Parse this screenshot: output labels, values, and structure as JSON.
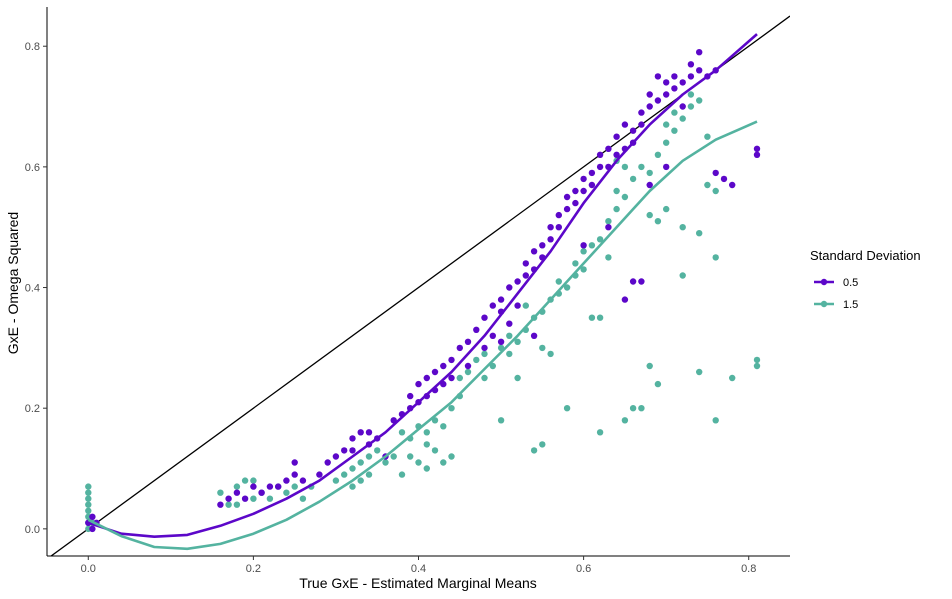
{
  "chart_data": {
    "type": "scatter",
    "xlabel": "True GxE - Estimated Marginal Means",
    "ylabel": "GxE - Omega Squared",
    "xlim": [
      -0.05,
      0.85
    ],
    "ylim": [
      -0.045,
      0.865
    ],
    "x_ticks": [
      "0.0",
      "0.2",
      "0.4",
      "0.6",
      "0.8"
    ],
    "y_ticks": [
      "0.0",
      "0.2",
      "0.4",
      "0.6",
      "0.8"
    ],
    "grid": false,
    "legend": {
      "title": "Standard Deviation",
      "position": "right",
      "entries": [
        "0.5",
        "1.5"
      ]
    },
    "reference_line": {
      "slope": 1,
      "intercept": 0,
      "color": "#000000"
    },
    "series": [
      {
        "name": "0.5",
        "color": "#5c07c9",
        "points": [
          [
            0.0,
            0.01
          ],
          [
            0.005,
            0.0
          ],
          [
            0.005,
            0.02
          ],
          [
            0.01,
            0.01
          ],
          [
            0.16,
            0.04
          ],
          [
            0.17,
            0.05
          ],
          [
            0.18,
            0.06
          ],
          [
            0.19,
            0.05
          ],
          [
            0.2,
            0.07
          ],
          [
            0.21,
            0.06
          ],
          [
            0.22,
            0.07
          ],
          [
            0.23,
            0.07
          ],
          [
            0.24,
            0.08
          ],
          [
            0.25,
            0.09
          ],
          [
            0.25,
            0.11
          ],
          [
            0.26,
            0.08
          ],
          [
            0.28,
            0.09
          ],
          [
            0.29,
            0.11
          ],
          [
            0.3,
            0.12
          ],
          [
            0.31,
            0.13
          ],
          [
            0.32,
            0.15
          ],
          [
            0.32,
            0.13
          ],
          [
            0.33,
            0.16
          ],
          [
            0.34,
            0.16
          ],
          [
            0.34,
            0.14
          ],
          [
            0.35,
            0.15
          ],
          [
            0.36,
            0.12
          ],
          [
            0.37,
            0.18
          ],
          [
            0.38,
            0.19
          ],
          [
            0.39,
            0.2
          ],
          [
            0.39,
            0.22
          ],
          [
            0.4,
            0.21
          ],
          [
            0.4,
            0.24
          ],
          [
            0.41,
            0.25
          ],
          [
            0.41,
            0.22
          ],
          [
            0.42,
            0.26
          ],
          [
            0.42,
            0.23
          ],
          [
            0.43,
            0.27
          ],
          [
            0.43,
            0.24
          ],
          [
            0.44,
            0.28
          ],
          [
            0.44,
            0.25
          ],
          [
            0.45,
            0.3
          ],
          [
            0.46,
            0.31
          ],
          [
            0.47,
            0.33
          ],
          [
            0.48,
            0.35
          ],
          [
            0.48,
            0.3
          ],
          [
            0.49,
            0.37
          ],
          [
            0.49,
            0.32
          ],
          [
            0.5,
            0.36
          ],
          [
            0.5,
            0.38
          ],
          [
            0.51,
            0.34
          ],
          [
            0.51,
            0.4
          ],
          [
            0.52,
            0.41
          ],
          [
            0.52,
            0.37
          ],
          [
            0.53,
            0.42
          ],
          [
            0.53,
            0.44
          ],
          [
            0.54,
            0.43
          ],
          [
            0.54,
            0.46
          ],
          [
            0.55,
            0.47
          ],
          [
            0.55,
            0.45
          ],
          [
            0.56,
            0.5
          ],
          [
            0.56,
            0.48
          ],
          [
            0.57,
            0.5
          ],
          [
            0.57,
            0.52
          ],
          [
            0.58,
            0.53
          ],
          [
            0.58,
            0.55
          ],
          [
            0.59,
            0.56
          ],
          [
            0.59,
            0.54
          ],
          [
            0.6,
            0.56
          ],
          [
            0.6,
            0.58
          ],
          [
            0.61,
            0.57
          ],
          [
            0.61,
            0.59
          ],
          [
            0.62,
            0.6
          ],
          [
            0.62,
            0.62
          ],
          [
            0.63,
            0.63
          ],
          [
            0.63,
            0.6
          ],
          [
            0.64,
            0.62
          ],
          [
            0.64,
            0.65
          ],
          [
            0.65,
            0.63
          ],
          [
            0.65,
            0.67
          ],
          [
            0.66,
            0.66
          ],
          [
            0.66,
            0.64
          ],
          [
            0.67,
            0.69
          ],
          [
            0.67,
            0.67
          ],
          [
            0.68,
            0.7
          ],
          [
            0.68,
            0.72
          ],
          [
            0.69,
            0.71
          ],
          [
            0.69,
            0.75
          ],
          [
            0.7,
            0.72
          ],
          [
            0.7,
            0.74
          ],
          [
            0.71,
            0.73
          ],
          [
            0.71,
            0.75
          ],
          [
            0.72,
            0.74
          ],
          [
            0.72,
            0.7
          ],
          [
            0.73,
            0.77
          ],
          [
            0.73,
            0.75
          ],
          [
            0.74,
            0.79
          ],
          [
            0.74,
            0.76
          ],
          [
            0.75,
            0.75
          ],
          [
            0.76,
            0.76
          ],
          [
            0.76,
            0.59
          ],
          [
            0.77,
            0.58
          ],
          [
            0.78,
            0.57
          ],
          [
            0.81,
            0.63
          ],
          [
            0.81,
            0.62
          ],
          [
            0.46,
            0.27
          ],
          [
            0.5,
            0.31
          ],
          [
            0.54,
            0.32
          ],
          [
            0.6,
            0.47
          ],
          [
            0.63,
            0.5
          ],
          [
            0.65,
            0.38
          ],
          [
            0.66,
            0.41
          ],
          [
            0.67,
            0.41
          ],
          [
            0.68,
            0.57
          ],
          [
            0.7,
            0.6
          ]
        ]
      },
      {
        "name": "1.5",
        "color": "#54b3a0",
        "points": [
          [
            0.0,
            0.0
          ],
          [
            0.0,
            0.01
          ],
          [
            0.0,
            0.02
          ],
          [
            0.0,
            0.03
          ],
          [
            0.0,
            0.04
          ],
          [
            0.0,
            0.05
          ],
          [
            0.0,
            0.06
          ],
          [
            0.0,
            0.07
          ],
          [
            0.005,
            0.01
          ],
          [
            0.16,
            0.06
          ],
          [
            0.17,
            0.04
          ],
          [
            0.18,
            0.07
          ],
          [
            0.18,
            0.04
          ],
          [
            0.19,
            0.08
          ],
          [
            0.2,
            0.05
          ],
          [
            0.2,
            0.08
          ],
          [
            0.21,
            0.06
          ],
          [
            0.22,
            0.05
          ],
          [
            0.23,
            0.07
          ],
          [
            0.24,
            0.06
          ],
          [
            0.25,
            0.07
          ],
          [
            0.26,
            0.05
          ],
          [
            0.27,
            0.07
          ],
          [
            0.3,
            0.08
          ],
          [
            0.31,
            0.09
          ],
          [
            0.32,
            0.1
          ],
          [
            0.32,
            0.07
          ],
          [
            0.33,
            0.11
          ],
          [
            0.33,
            0.08
          ],
          [
            0.34,
            0.12
          ],
          [
            0.34,
            0.09
          ],
          [
            0.35,
            0.13
          ],
          [
            0.36,
            0.11
          ],
          [
            0.37,
            0.12
          ],
          [
            0.38,
            0.09
          ],
          [
            0.38,
            0.16
          ],
          [
            0.39,
            0.15
          ],
          [
            0.39,
            0.12
          ],
          [
            0.4,
            0.11
          ],
          [
            0.4,
            0.17
          ],
          [
            0.41,
            0.1
          ],
          [
            0.41,
            0.16
          ],
          [
            0.41,
            0.14
          ],
          [
            0.42,
            0.13
          ],
          [
            0.42,
            0.18
          ],
          [
            0.43,
            0.17
          ],
          [
            0.43,
            0.11
          ],
          [
            0.44,
            0.2
          ],
          [
            0.44,
            0.12
          ],
          [
            0.45,
            0.22
          ],
          [
            0.45,
            0.25
          ],
          [
            0.46,
            0.26
          ],
          [
            0.47,
            0.28
          ],
          [
            0.48,
            0.25
          ],
          [
            0.48,
            0.29
          ],
          [
            0.49,
            0.27
          ],
          [
            0.5,
            0.3
          ],
          [
            0.5,
            0.18
          ],
          [
            0.51,
            0.29
          ],
          [
            0.51,
            0.32
          ],
          [
            0.52,
            0.25
          ],
          [
            0.52,
            0.31
          ],
          [
            0.53,
            0.33
          ],
          [
            0.53,
            0.37
          ],
          [
            0.54,
            0.35
          ],
          [
            0.54,
            0.13
          ],
          [
            0.55,
            0.36
          ],
          [
            0.55,
            0.14
          ],
          [
            0.55,
            0.3
          ],
          [
            0.56,
            0.38
          ],
          [
            0.56,
            0.29
          ],
          [
            0.57,
            0.39
          ],
          [
            0.57,
            0.41
          ],
          [
            0.58,
            0.4
          ],
          [
            0.58,
            0.2
          ],
          [
            0.59,
            0.42
          ],
          [
            0.59,
            0.44
          ],
          [
            0.6,
            0.43
          ],
          [
            0.6,
            0.46
          ],
          [
            0.61,
            0.47
          ],
          [
            0.61,
            0.35
          ],
          [
            0.62,
            0.48
          ],
          [
            0.62,
            0.16
          ],
          [
            0.62,
            0.35
          ],
          [
            0.63,
            0.51
          ],
          [
            0.63,
            0.45
          ],
          [
            0.64,
            0.53
          ],
          [
            0.64,
            0.56
          ],
          [
            0.65,
            0.55
          ],
          [
            0.65,
            0.18
          ],
          [
            0.66,
            0.58
          ],
          [
            0.66,
            0.2
          ],
          [
            0.67,
            0.6
          ],
          [
            0.67,
            0.2
          ],
          [
            0.68,
            0.59
          ],
          [
            0.68,
            0.27
          ],
          [
            0.69,
            0.62
          ],
          [
            0.69,
            0.24
          ],
          [
            0.7,
            0.64
          ],
          [
            0.7,
            0.67
          ],
          [
            0.71,
            0.66
          ],
          [
            0.71,
            0.69
          ],
          [
            0.72,
            0.68
          ],
          [
            0.72,
            0.42
          ],
          [
            0.73,
            0.7
          ],
          [
            0.73,
            0.72
          ],
          [
            0.74,
            0.71
          ],
          [
            0.74,
            0.26
          ],
          [
            0.75,
            0.65
          ],
          [
            0.76,
            0.45
          ],
          [
            0.76,
            0.18
          ],
          [
            0.78,
            0.25
          ],
          [
            0.81,
            0.28
          ],
          [
            0.81,
            0.27
          ],
          [
            0.64,
            0.61
          ],
          [
            0.65,
            0.6
          ],
          [
            0.68,
            0.52
          ],
          [
            0.69,
            0.51
          ],
          [
            0.7,
            0.53
          ],
          [
            0.72,
            0.5
          ],
          [
            0.74,
            0.49
          ],
          [
            0.75,
            0.57
          ],
          [
            0.76,
            0.56
          ]
        ]
      }
    ],
    "fits": [
      {
        "series": "0.5",
        "color": "#5c07c9",
        "x": [
          0.0,
          0.04,
          0.08,
          0.12,
          0.16,
          0.2,
          0.24,
          0.28,
          0.32,
          0.36,
          0.4,
          0.44,
          0.48,
          0.52,
          0.56,
          0.6,
          0.64,
          0.68,
          0.72,
          0.76,
          0.81
        ],
        "y": [
          0.01,
          -0.008,
          -0.013,
          -0.01,
          0.005,
          0.025,
          0.05,
          0.08,
          0.12,
          0.16,
          0.21,
          0.26,
          0.32,
          0.39,
          0.46,
          0.54,
          0.61,
          0.67,
          0.72,
          0.76,
          0.82
        ]
      },
      {
        "series": "1.5",
        "color": "#54b3a0",
        "x": [
          0.0,
          0.04,
          0.08,
          0.12,
          0.16,
          0.2,
          0.24,
          0.28,
          0.32,
          0.36,
          0.4,
          0.44,
          0.48,
          0.52,
          0.56,
          0.6,
          0.64,
          0.68,
          0.72,
          0.76,
          0.81
        ],
        "y": [
          0.015,
          -0.012,
          -0.03,
          -0.033,
          -0.025,
          -0.008,
          0.015,
          0.045,
          0.08,
          0.12,
          0.165,
          0.21,
          0.265,
          0.32,
          0.38,
          0.44,
          0.5,
          0.56,
          0.61,
          0.645,
          0.675
        ]
      }
    ]
  }
}
